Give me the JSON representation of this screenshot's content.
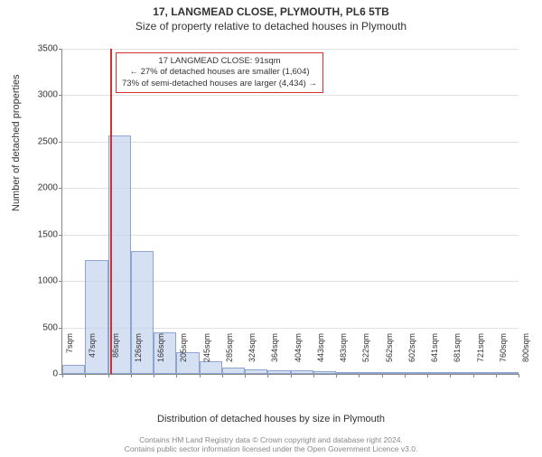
{
  "titles": {
    "main": "17, LANGMEAD CLOSE, PLYMOUTH, PL6 5TB",
    "sub": "Size of property relative to detached houses in Plymouth"
  },
  "axes": {
    "ylabel": "Number of detached properties",
    "xlabel": "Distribution of detached houses by size in Plymouth",
    "ylim": [
      0,
      3500
    ],
    "ytick_step": 500,
    "yticks": [
      0,
      500,
      1000,
      1500,
      2000,
      2500,
      3000,
      3500
    ],
    "xticks": [
      "7sqm",
      "47sqm",
      "86sqm",
      "126sqm",
      "166sqm",
      "205sqm",
      "245sqm",
      "285sqm",
      "324sqm",
      "364sqm",
      "404sqm",
      "443sqm",
      "483sqm",
      "522sqm",
      "562sqm",
      "602sqm",
      "641sqm",
      "681sqm",
      "721sqm",
      "760sqm",
      "800sqm"
    ],
    "grid_color": "#e0e0e0",
    "axis_color": "#888888"
  },
  "chart": {
    "type": "histogram",
    "bar_fill": "#c8d6f0",
    "bar_fill_opacity": 0.75,
    "bar_border": "#6a85c0",
    "background_color": "#ffffff",
    "values": [
      100,
      1230,
      2570,
      1320,
      450,
      230,
      140,
      70,
      50,
      40,
      35,
      30,
      15,
      5,
      5,
      3,
      3,
      2,
      2,
      2
    ],
    "marker": {
      "position_sqm": 91,
      "color": "#d03030"
    }
  },
  "annotation": {
    "lines": [
      "17 LANGMEAD CLOSE: 91sqm",
      "← 27% of detached houses are smaller (1,604)",
      "73% of semi-detached houses are larger (4,434) →"
    ],
    "border_color": "#d03030"
  },
  "footer": {
    "line1": "Contains HM Land Registry data © Crown copyright and database right 2024.",
    "line2": "Contains public sector information licensed under the Open Government Licence v3.0."
  },
  "style": {
    "title_fontsize": 12,
    "label_fontsize": 11,
    "tick_fontsize": 10,
    "footer_fontsize": 8.5
  }
}
